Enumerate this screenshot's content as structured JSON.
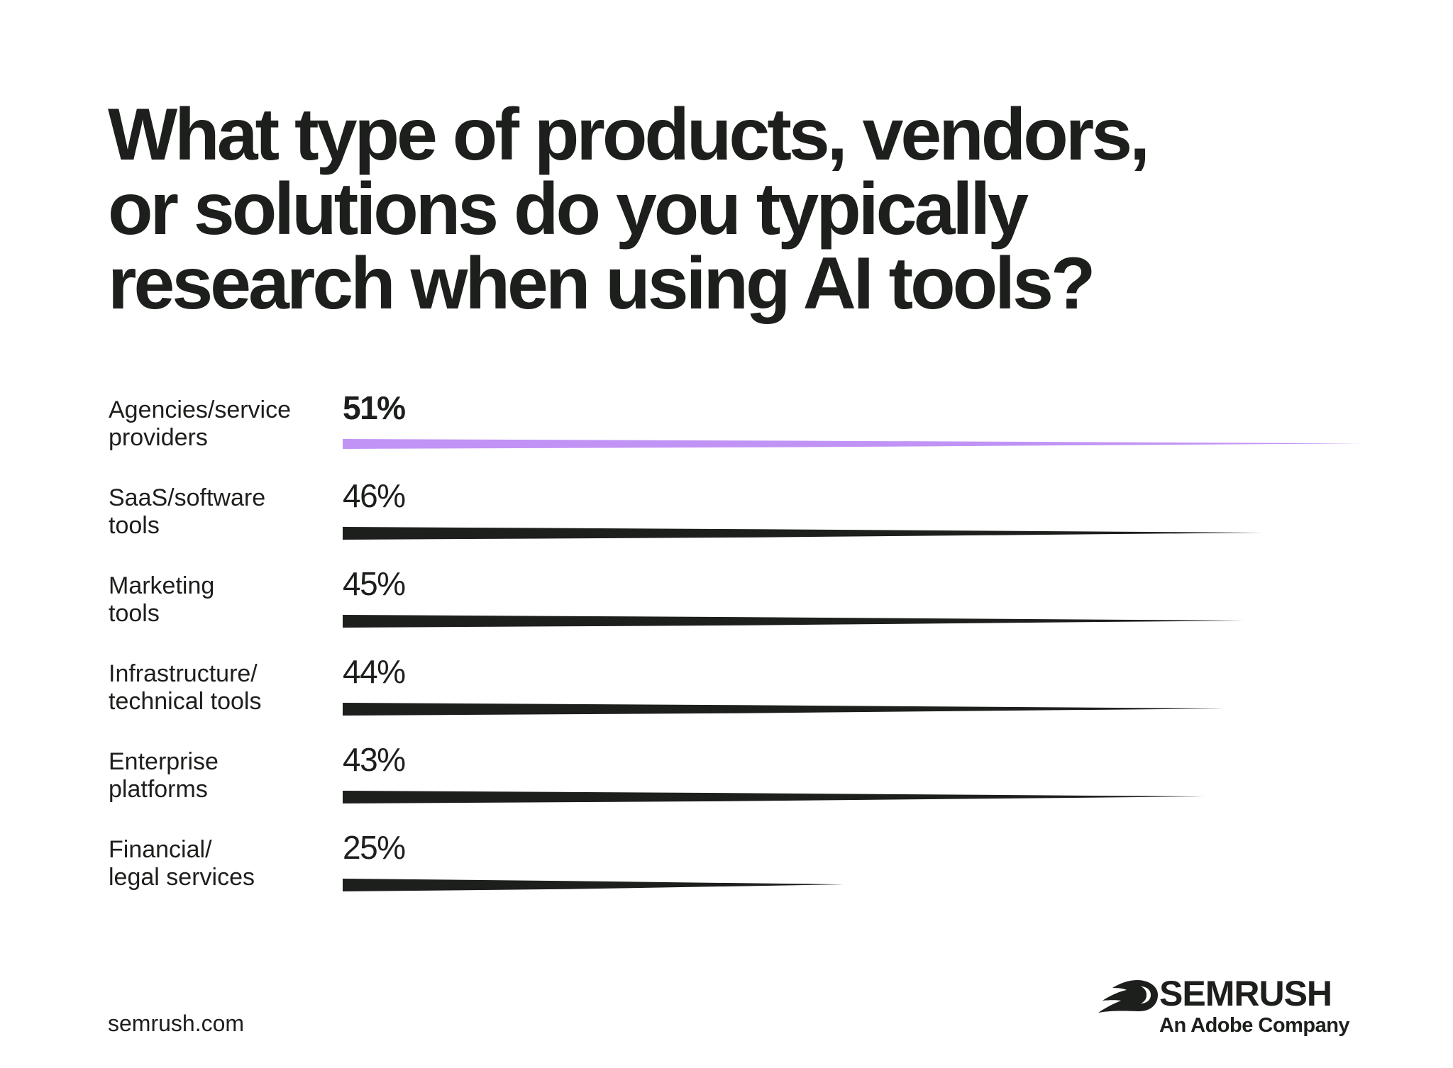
{
  "colors": {
    "text": "#1c1f1b",
    "bar_default": "#1c1f1b",
    "bar_highlight": "#c193f5",
    "background": "#ffffff"
  },
  "chart_data": {
    "type": "bar",
    "orientation": "horizontal",
    "title_lines": [
      "What type of products, vendors,",
      "or solutions do you typically",
      "research when using AI tools?"
    ],
    "categories": [
      [
        "Agencies/service",
        "providers"
      ],
      [
        "SaaS/software",
        "tools"
      ],
      [
        "Marketing",
        "tools"
      ],
      [
        "Infrastructure/",
        "technical tools"
      ],
      [
        "Enterprise",
        "platforms"
      ],
      [
        "Financial/",
        "legal services"
      ]
    ],
    "values": [
      51,
      46,
      45,
      44,
      43,
      25
    ],
    "value_labels": [
      "51%",
      "46%",
      "45%",
      "44%",
      "43%",
      "25%"
    ],
    "unit": "%",
    "highlight_index": 0,
    "xlim": [
      0,
      51
    ],
    "grid": false,
    "legend": "none"
  },
  "footer": {
    "url": "semrush.com"
  },
  "logo": {
    "icon": "semrush-flame-icon",
    "wordmark": "SEMRUSH",
    "tagline": "An Adobe Company"
  }
}
